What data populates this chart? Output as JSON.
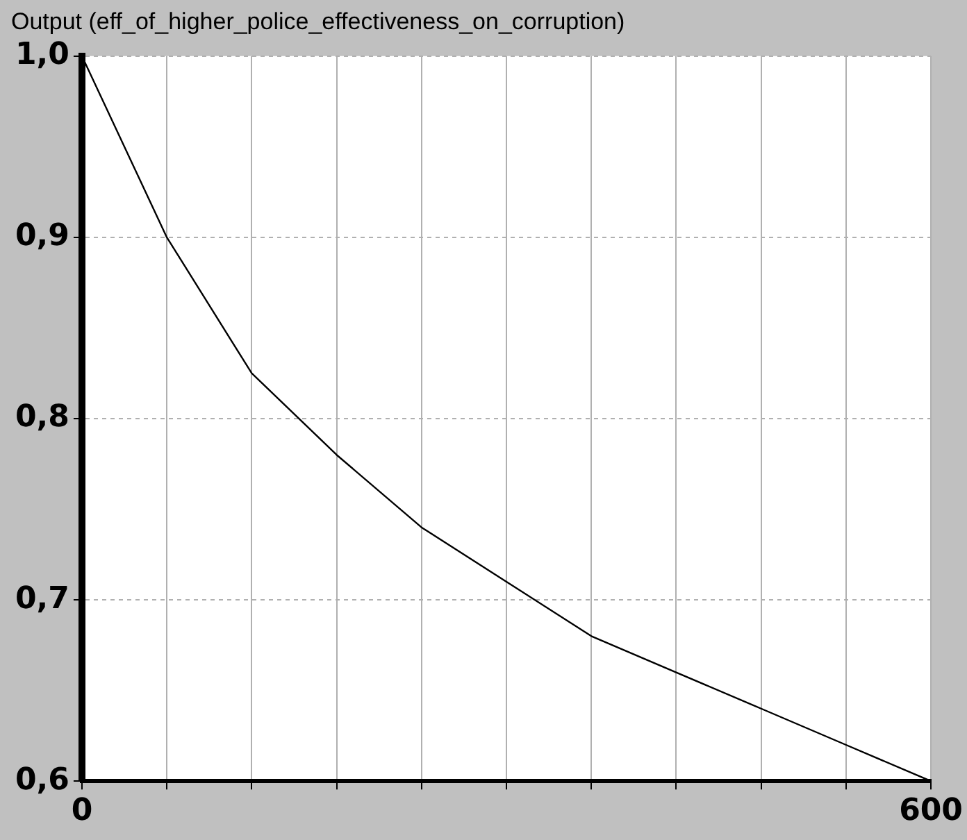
{
  "chart_data": {
    "type": "line",
    "title": "Output (eff_of_higher_police_effectiveness_on_corruption)",
    "x": [
      0,
      60,
      120,
      180,
      240,
      300,
      360,
      420,
      480,
      540,
      600
    ],
    "series": [
      {
        "color": "#000000",
        "values": [
          1.0,
          0.9,
          0.825,
          0.78,
          0.74,
          0.71,
          0.68,
          0.66,
          0.64,
          0.62,
          0.6
        ]
      }
    ],
    "xlim": [
      0,
      600
    ],
    "xticks": [
      0,
      {
        "value": 60,
        "label": null
      },
      {
        "value": 120,
        "label": null
      },
      {
        "value": 180,
        "label": null
      },
      {
        "value": 240,
        "label": null
      },
      {
        "value": 300,
        "label": null
      },
      {
        "value": 360,
        "label": null
      },
      {
        "value": 420,
        "label": null
      },
      {
        "value": 480,
        "label": null
      },
      {
        "value": 540,
        "label": null
      },
      600
    ],
    "ylim": [
      0.6,
      1.0
    ],
    "yticks": [
      {
        "value": 0.6,
        "label": "0,6"
      },
      {
        "value": 0.7,
        "label": "0,7"
      },
      {
        "value": 0.8,
        "label": "0,8"
      },
      {
        "value": 0.9,
        "label": "0,9"
      },
      {
        "value": 1.0,
        "label": "1,0"
      }
    ],
    "grid": true,
    "marker": "none",
    "line_style": "solid"
  }
}
